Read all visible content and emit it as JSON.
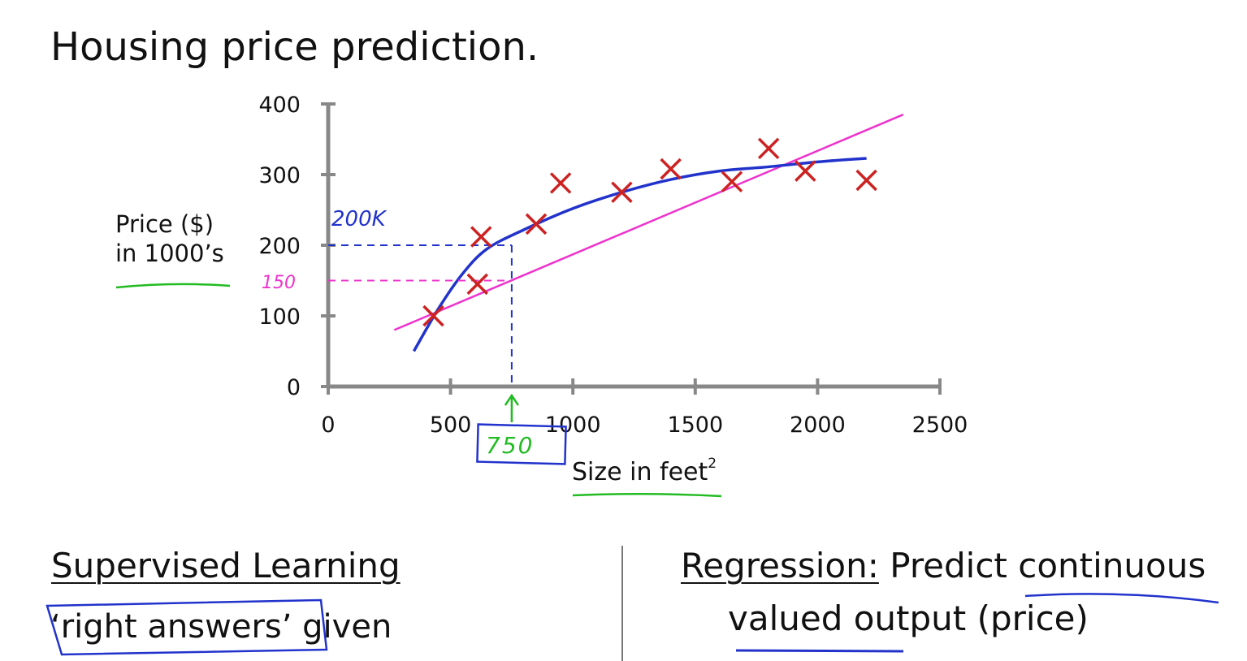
{
  "slide": {
    "title": "Housing price prediction.",
    "supervised_heading": "Supervised Learning",
    "right_answers": "‘right answers’",
    "given": " given",
    "regression_term": "Regression:",
    "regression_text": " Predict continuous",
    "regression_text_2": "valued output (price)"
  },
  "annotations": {
    "blue_price": "200K",
    "pink_price": "150",
    "green_size": "750"
  },
  "colors": {
    "points": "#cc2222",
    "blue_curve": "#2233cc",
    "pink_line": "#ee33cc",
    "green_ink": "#22bb22",
    "axis": "#888888"
  },
  "chart_data": {
    "type": "scatter",
    "title": "Housing price prediction.",
    "xlabel": "Size in feet",
    "xlabel_superscript": "2",
    "ylabel_line1": "Price ($)",
    "ylabel_line2": "in 1000’s",
    "xlim": [
      0,
      2500
    ],
    "ylim": [
      0,
      400
    ],
    "xticks": [
      0,
      500,
      1000,
      1500,
      2000,
      2500
    ],
    "yticks": [
      0,
      100,
      200,
      300,
      400
    ],
    "points": [
      {
        "x": 430,
        "y": 100
      },
      {
        "x": 610,
        "y": 145
      },
      {
        "x": 625,
        "y": 212
      },
      {
        "x": 850,
        "y": 230
      },
      {
        "x": 950,
        "y": 288
      },
      {
        "x": 1200,
        "y": 275
      },
      {
        "x": 1400,
        "y": 308
      },
      {
        "x": 1650,
        "y": 290
      },
      {
        "x": 1800,
        "y": 337
      },
      {
        "x": 1950,
        "y": 305
      },
      {
        "x": 2200,
        "y": 292
      }
    ],
    "quadratic_fit": [
      {
        "x": 350,
        "y": 50
      },
      {
        "x": 450,
        "y": 110
      },
      {
        "x": 550,
        "y": 160
      },
      {
        "x": 650,
        "y": 195
      },
      {
        "x": 800,
        "y": 222
      },
      {
        "x": 1000,
        "y": 252
      },
      {
        "x": 1200,
        "y": 275
      },
      {
        "x": 1400,
        "y": 293
      },
      {
        "x": 1600,
        "y": 305
      },
      {
        "x": 1800,
        "y": 311
      },
      {
        "x": 2000,
        "y": 318
      },
      {
        "x": 2200,
        "y": 323
      }
    ],
    "linear_fit": [
      {
        "x": 270,
        "y": 80
      },
      {
        "x": 2350,
        "y": 385
      }
    ],
    "prediction_x": 750,
    "prediction_blue_y": 200,
    "prediction_pink_y": 150
  }
}
